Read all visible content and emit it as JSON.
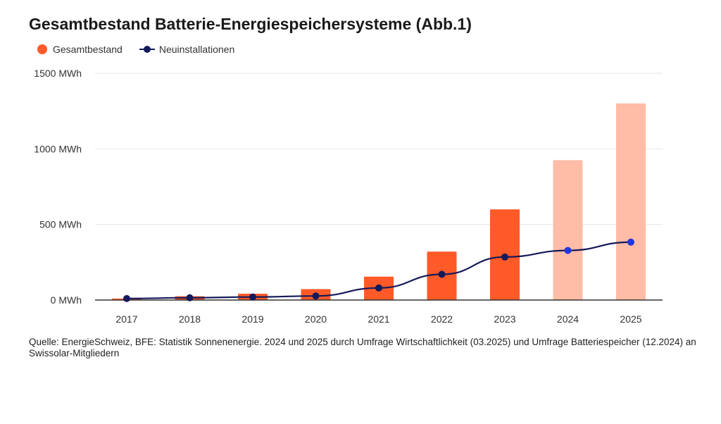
{
  "chart_data": {
    "type": "bar+line",
    "title": "Gesamtbestand Batterie-Energiespeichersysteme (Abb.1)",
    "categories": [
      "2017",
      "2018",
      "2019",
      "2020",
      "2021",
      "2022",
      "2023",
      "2024",
      "2025"
    ],
    "series": [
      {
        "name": "Gesamtbestand",
        "type": "bar",
        "values": [
          10,
          25,
          42,
          72,
          155,
          320,
          600,
          925,
          1300
        ],
        "estimated": [
          false,
          false,
          false,
          false,
          false,
          false,
          false,
          true,
          true
        ]
      },
      {
        "name": "Neuinstallationen",
        "type": "line",
        "values": [
          10,
          15,
          20,
          27,
          80,
          170,
          285,
          328,
          383
        ]
      }
    ],
    "ylim": [
      0,
      1500
    ],
    "yticks": [
      0,
      500,
      1000,
      1500
    ],
    "ytick_labels": [
      "0 MWh",
      "500 MWh",
      "1000 MWh",
      "1500 MWh"
    ],
    "xlabel": "",
    "ylabel": "",
    "legend_position": "top-left",
    "grid": true,
    "colors": {
      "bar": "#ff5a28",
      "bar_estimated": "#ffbca6",
      "line": "#141a5a",
      "marker": "#141a5a",
      "marker_estimated": "#1f36e0",
      "grid": "#e6e6e6",
      "axis": "#333333"
    }
  },
  "legend": {
    "bar_label": "Gesamtbestand",
    "line_label": "Neuinstallationen"
  },
  "source_note": "Quelle: EnergieSchweiz, BFE: Statistik Sonnenenergie. 2024 und 2025 durch Umfrage Wirtschaftlichkeit (03.2025) und Umfrage Batteriespeicher (12.2024) an Swissolar-Mitgliedern"
}
